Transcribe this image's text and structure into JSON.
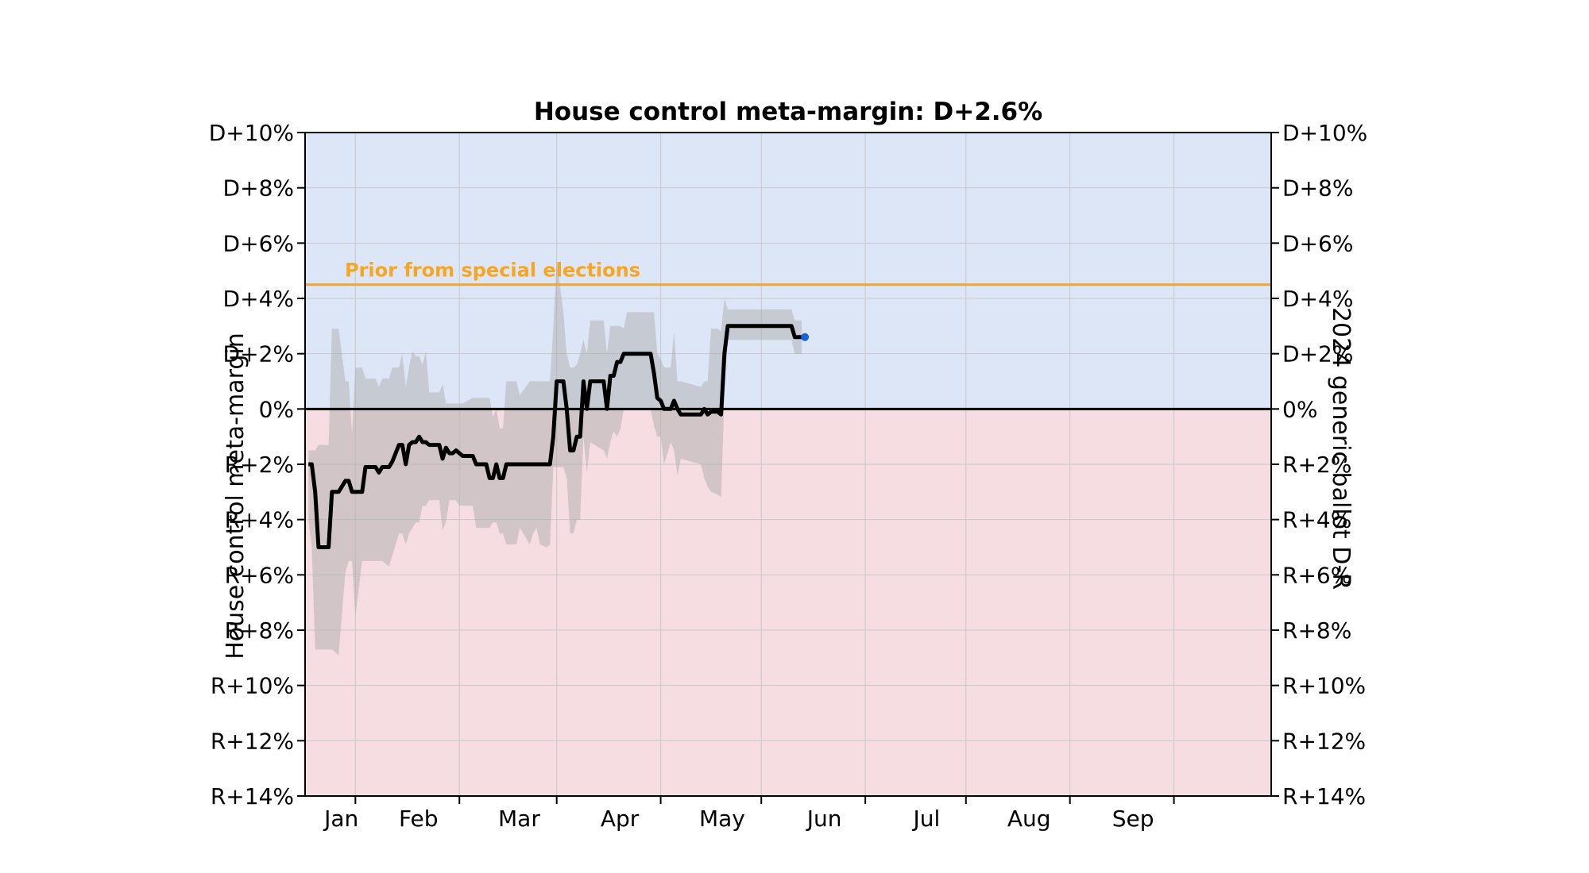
{
  "chart_data": {
    "type": "line",
    "title": "House control meta-margin: D+2.6%",
    "ylabel_left": "House control meta-margin",
    "ylabel_right": "2024 generic ballot D-R",
    "ylim": [
      -14,
      10
    ],
    "yticks": [
      {
        "value": 10,
        "label": "D+10%"
      },
      {
        "value": 8,
        "label": "D+8%"
      },
      {
        "value": 6,
        "label": "D+6%"
      },
      {
        "value": 4,
        "label": "D+4%"
      },
      {
        "value": 2,
        "label": "D+2%"
      },
      {
        "value": 0,
        "label": "0%"
      },
      {
        "value": -2,
        "label": "R+2%"
      },
      {
        "value": -4,
        "label": "R+4%"
      },
      {
        "value": -6,
        "label": "R+6%"
      },
      {
        "value": -8,
        "label": "R+8%"
      },
      {
        "value": -10,
        "label": "R+10%"
      },
      {
        "value": -12,
        "label": "R+12%"
      },
      {
        "value": -14,
        "label": "R+14%"
      }
    ],
    "xlim": [
      "2024-01-01",
      "2024-09-30"
    ],
    "xticks": [
      {
        "date": "2024-01-01",
        "label": "Jan"
      },
      {
        "date": "2024-02-01",
        "label": "Feb"
      },
      {
        "date": "2024-03-01",
        "label": "Mar"
      },
      {
        "date": "2024-04-01",
        "label": "Apr"
      },
      {
        "date": "2024-05-01",
        "label": "May"
      },
      {
        "date": "2024-06-01",
        "label": "Jun"
      },
      {
        "date": "2024-07-01",
        "label": "Jul"
      },
      {
        "date": "2024-08-01",
        "label": "Aug"
      },
      {
        "date": "2024-09-01",
        "label": "Sep"
      }
    ],
    "grid": true,
    "background_regions": [
      {
        "from": 0,
        "to": 10,
        "color": "#dce6f6"
      },
      {
        "from": -14,
        "to": 0,
        "color": "#f5dde1"
      }
    ],
    "prior": {
      "value": 4.5,
      "label": "Prior from special elections",
      "color": "#f5a623"
    },
    "zero_line": 0,
    "band_color": "#a8a8a8",
    "line_color": "#000000",
    "current_point": {
      "date": "2024-05-14",
      "value": 2.6,
      "color": "#1f5fd6"
    },
    "series": [
      {
        "values": [
          {
            "date": "2024-12-18",
            "y": -2.0,
            "lo": -4.0,
            "hi": -1.5
          },
          {
            "date": "2024-12-19",
            "y": -2.0,
            "lo": -5.0,
            "hi": -1.5
          },
          {
            "date": "2024-12-20",
            "y": -3.0,
            "lo": -8.7,
            "hi": -1.5
          },
          {
            "date": "2024-12-21",
            "y": -5.0,
            "lo": -8.7,
            "hi": -1.3
          },
          {
            "date": "2024-12-24",
            "y": -5.0,
            "lo": -8.7,
            "hi": -1.3
          },
          {
            "date": "2024-12-25",
            "y": -3.0,
            "lo": -8.7,
            "hi": 2.9
          },
          {
            "date": "2024-12-27",
            "y": -3.0,
            "lo": -8.9,
            "hi": 2.9
          },
          {
            "date": "2024-12-29",
            "y": -2.6,
            "lo": -5.9,
            "hi": 1.0
          },
          {
            "date": "2024-12-30",
            "y": -2.6,
            "lo": -5.5,
            "hi": 1.0
          },
          {
            "date": "2024-12-31",
            "y": -3.0,
            "lo": -5.5,
            "hi": -0.9
          },
          {
            "date": "2024-01-01",
            "y": -3.0,
            "lo": -7.5,
            "hi": 1.5
          },
          {
            "date": "2024-01-03",
            "y": -3.0,
            "lo": -5.5,
            "hi": 1.5
          },
          {
            "date": "2024-01-04",
            "y": -2.1,
            "lo": -5.5,
            "hi": 1.1
          },
          {
            "date": "2024-01-07",
            "y": -2.1,
            "lo": -5.5,
            "hi": 1.1
          },
          {
            "date": "2024-01-08",
            "y": -2.3,
            "lo": -5.5,
            "hi": 0.8
          },
          {
            "date": "2024-01-09",
            "y": -2.1,
            "lo": -5.5,
            "hi": 1.1
          },
          {
            "date": "2024-01-11",
            "y": -2.1,
            "lo": -5.7,
            "hi": 1.1
          },
          {
            "date": "2024-01-12",
            "y": -1.9,
            "lo": -5.3,
            "hi": 1.5
          },
          {
            "date": "2024-01-14",
            "y": -1.3,
            "lo": -4.5,
            "hi": 1.5
          },
          {
            "date": "2024-01-15",
            "y": -1.3,
            "lo": -4.5,
            "hi": 2.0
          },
          {
            "date": "2024-01-16",
            "y": -2.0,
            "lo": -4.9,
            "hi": 0.8
          },
          {
            "date": "2024-01-17",
            "y": -1.3,
            "lo": -4.5,
            "hi": 1.5
          },
          {
            "date": "2024-01-18",
            "y": -1.2,
            "lo": -4.3,
            "hi": 2.1
          },
          {
            "date": "2024-01-19",
            "y": -1.2,
            "lo": -4.1,
            "hi": 1.9
          },
          {
            "date": "2024-01-20",
            "y": -1.0,
            "lo": -4.1,
            "hi": 1.9
          },
          {
            "date": "2024-01-21",
            "y": -1.2,
            "lo": -3.5,
            "hi": 1.6
          },
          {
            "date": "2024-01-22",
            "y": -1.2,
            "lo": -3.5,
            "hi": 2.1
          },
          {
            "date": "2024-01-23",
            "y": -1.3,
            "lo": -3.3,
            "hi": 0.6
          },
          {
            "date": "2024-01-26",
            "y": -1.3,
            "lo": -3.3,
            "hi": 0.6
          },
          {
            "date": "2024-01-27",
            "y": -1.8,
            "lo": -4.4,
            "hi": 0.9
          },
          {
            "date": "2024-01-28",
            "y": -1.4,
            "lo": -4.1,
            "hi": 0.2
          },
          {
            "date": "2024-01-29",
            "y": -1.6,
            "lo": -3.3,
            "hi": 0.2
          },
          {
            "date": "2024-01-30",
            "y": -1.6,
            "lo": -3.3,
            "hi": 0.2
          },
          {
            "date": "2024-01-31",
            "y": -1.5,
            "lo": -3.3,
            "hi": 0.2
          },
          {
            "date": "2024-02-01",
            "y": -1.6,
            "lo": -3.5,
            "hi": 0.2
          },
          {
            "date": "2024-02-02",
            "y": -1.7,
            "lo": -3.5,
            "hi": 0.2
          },
          {
            "date": "2024-02-05",
            "y": -1.7,
            "lo": -3.5,
            "hi": 0.4
          },
          {
            "date": "2024-02-06",
            "y": -2.0,
            "lo": -4.3,
            "hi": 0.4
          },
          {
            "date": "2024-02-09",
            "y": -2.0,
            "lo": -4.3,
            "hi": 0.4
          },
          {
            "date": "2024-02-10",
            "y": -2.5,
            "lo": -4.3,
            "hi": 0.4
          },
          {
            "date": "2024-02-11",
            "y": -2.5,
            "lo": -4.1,
            "hi": -0.3
          },
          {
            "date": "2024-02-12",
            "y": -2.0,
            "lo": -4.1,
            "hi": 0.0
          },
          {
            "date": "2024-02-13",
            "y": -2.5,
            "lo": -4.5,
            "hi": -0.7
          },
          {
            "date": "2024-02-14",
            "y": -2.5,
            "lo": -4.5,
            "hi": -0.7
          },
          {
            "date": "2024-02-15",
            "y": -2.0,
            "lo": -4.9,
            "hi": 1.0
          },
          {
            "date": "2024-02-18",
            "y": -2.0,
            "lo": -4.9,
            "hi": 1.0
          },
          {
            "date": "2024-02-19",
            "y": -2.0,
            "lo": -4.3,
            "hi": 0.5
          },
          {
            "date": "2024-02-22",
            "y": -2.0,
            "lo": -4.9,
            "hi": 1.0
          },
          {
            "date": "2024-02-23",
            "y": -2.0,
            "lo": -4.5,
            "hi": 1.0
          },
          {
            "date": "2024-02-24",
            "y": -2.0,
            "lo": -4.3,
            "hi": 1.0
          },
          {
            "date": "2024-02-25",
            "y": -2.0,
            "lo": -4.9,
            "hi": 1.0
          },
          {
            "date": "2024-02-27",
            "y": -2.0,
            "lo": -5.0,
            "hi": 1.0
          },
          {
            "date": "2024-02-28",
            "y": -2.0,
            "lo": -4.9,
            "hi": 1.0
          },
          {
            "date": "2024-02-29",
            "y": -1.0,
            "lo": -2.1,
            "hi": 2.9
          },
          {
            "date": "2024-03-01",
            "y": 1.0,
            "lo": -2.1,
            "hi": 5.4
          },
          {
            "date": "2024-03-03",
            "y": 1.0,
            "lo": -2.1,
            "hi": 3.5
          },
          {
            "date": "2024-03-04",
            "y": 0.0,
            "lo": -2.5,
            "hi": 2.0
          },
          {
            "date": "2024-03-05",
            "y": -1.5,
            "lo": -4.5,
            "hi": 1.5
          },
          {
            "date": "2024-03-06",
            "y": -1.5,
            "lo": -4.5,
            "hi": 1.5
          },
          {
            "date": "2024-03-07",
            "y": -1.0,
            "lo": -4.0,
            "hi": 1.6
          },
          {
            "date": "2024-03-08",
            "y": -1.0,
            "lo": -4.0,
            "hi": 2.0
          },
          {
            "date": "2024-03-09",
            "y": 1.0,
            "lo": -1.0,
            "hi": 2.5
          },
          {
            "date": "2024-03-10",
            "y": 0.0,
            "lo": -2.3,
            "hi": 2.0
          },
          {
            "date": "2024-03-11",
            "y": 1.0,
            "lo": -1.2,
            "hi": 3.2
          },
          {
            "date": "2024-03-15",
            "y": 1.0,
            "lo": -1.5,
            "hi": 3.2
          },
          {
            "date": "2024-03-16",
            "y": 0.0,
            "lo": -1.8,
            "hi": 2.0
          },
          {
            "date": "2024-03-17",
            "y": 1.2,
            "lo": -1.2,
            "hi": 3.0
          },
          {
            "date": "2024-03-18",
            "y": 1.2,
            "lo": -0.8,
            "hi": 3.0
          },
          {
            "date": "2024-03-19",
            "y": 1.7,
            "lo": -1.0,
            "hi": 3.0
          },
          {
            "date": "2024-03-20",
            "y": 1.7,
            "lo": -0.7,
            "hi": 3.0
          },
          {
            "date": "2024-03-21",
            "y": 2.0,
            "lo": 0.0,
            "hi": 2.9
          },
          {
            "date": "2024-03-22",
            "y": 2.0,
            "lo": 0.0,
            "hi": 3.5
          },
          {
            "date": "2024-03-29",
            "y": 2.0,
            "lo": 0.0,
            "hi": 3.5
          },
          {
            "date": "2024-03-30",
            "y": 1.3,
            "lo": -0.6,
            "hi": 3.5
          },
          {
            "date": "2024-03-31",
            "y": 0.4,
            "lo": -1.0,
            "hi": 2.0
          },
          {
            "date": "2024-04-01",
            "y": 0.3,
            "lo": -1.0,
            "hi": 1.8
          },
          {
            "date": "2024-04-02",
            "y": 0.0,
            "lo": -2.0,
            "hi": 1.5
          },
          {
            "date": "2024-04-04",
            "y": 0.0,
            "lo": -1.2,
            "hi": 1.5
          },
          {
            "date": "2024-04-05",
            "y": 0.3,
            "lo": -1.5,
            "hi": 2.8
          },
          {
            "date": "2024-04-06",
            "y": 0.0,
            "lo": -2.4,
            "hi": 1.0
          },
          {
            "date": "2024-04-07",
            "y": -0.2,
            "lo": -1.8,
            "hi": 1.0
          },
          {
            "date": "2024-04-13",
            "y": -0.2,
            "lo": -2.0,
            "hi": 0.8
          },
          {
            "date": "2024-04-14",
            "y": 0.0,
            "lo": -2.5,
            "hi": 1.0
          },
          {
            "date": "2024-04-15",
            "y": -0.2,
            "lo": -2.8,
            "hi": 1.0
          },
          {
            "date": "2024-04-16",
            "y": -0.1,
            "lo": -3.0,
            "hi": 2.9
          },
          {
            "date": "2024-04-18",
            "y": -0.1,
            "lo": -3.1,
            "hi": 2.9
          },
          {
            "date": "2024-04-19",
            "y": -0.2,
            "lo": -3.2,
            "hi": 2.8
          },
          {
            "date": "2024-04-20",
            "y": 2.0,
            "lo": 0.5,
            "hi": 4.0
          },
          {
            "date": "2024-04-21",
            "y": 3.0,
            "lo": 2.5,
            "hi": 3.6
          },
          {
            "date": "2024-05-10",
            "y": 3.0,
            "lo": 2.5,
            "hi": 3.6
          },
          {
            "date": "2024-05-11",
            "y": 2.6,
            "lo": 2.0,
            "hi": 3.2
          },
          {
            "date": "2024-05-13",
            "y": 2.6,
            "lo": 2.0,
            "hi": 3.2
          }
        ]
      }
    ]
  }
}
